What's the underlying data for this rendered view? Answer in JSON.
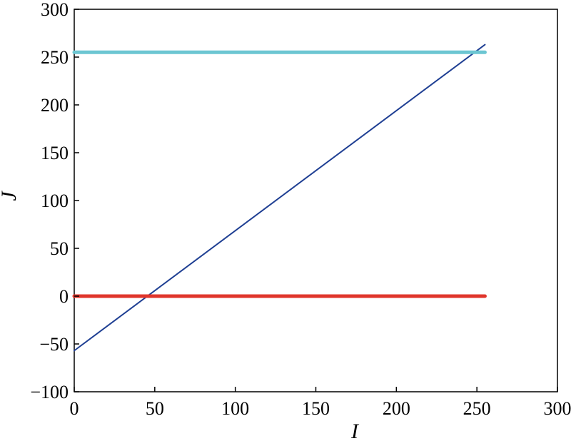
{
  "chart_data": {
    "type": "line",
    "title": "",
    "xlabel": "I",
    "ylabel": "J",
    "xlim": [
      0,
      300
    ],
    "ylim": [
      -100,
      300
    ],
    "xticks": [
      0,
      50,
      100,
      150,
      200,
      250,
      300
    ],
    "yticks": [
      -100,
      -50,
      0,
      50,
      100,
      150,
      200,
      250,
      300
    ],
    "xtick_labels": [
      "0",
      "50",
      "100",
      "150",
      "200",
      "250",
      "300"
    ],
    "ytick_labels": [
      "−100",
      "−50",
      "0",
      "50",
      "100",
      "150",
      "200",
      "250",
      "300"
    ],
    "grid": false,
    "legend": "none",
    "series": [
      {
        "color": "#1f3f93",
        "stroke": "thin",
        "x": [
          0,
          255
        ],
        "y": [
          -57,
          263
        ]
      },
      {
        "color": "#e0352b",
        "stroke": "thick",
        "x": [
          0,
          255
        ],
        "y": [
          0,
          0
        ]
      },
      {
        "color": "#6cc6d2",
        "stroke": "thick",
        "x": [
          0,
          255
        ],
        "y": [
          255,
          255
        ]
      }
    ]
  }
}
